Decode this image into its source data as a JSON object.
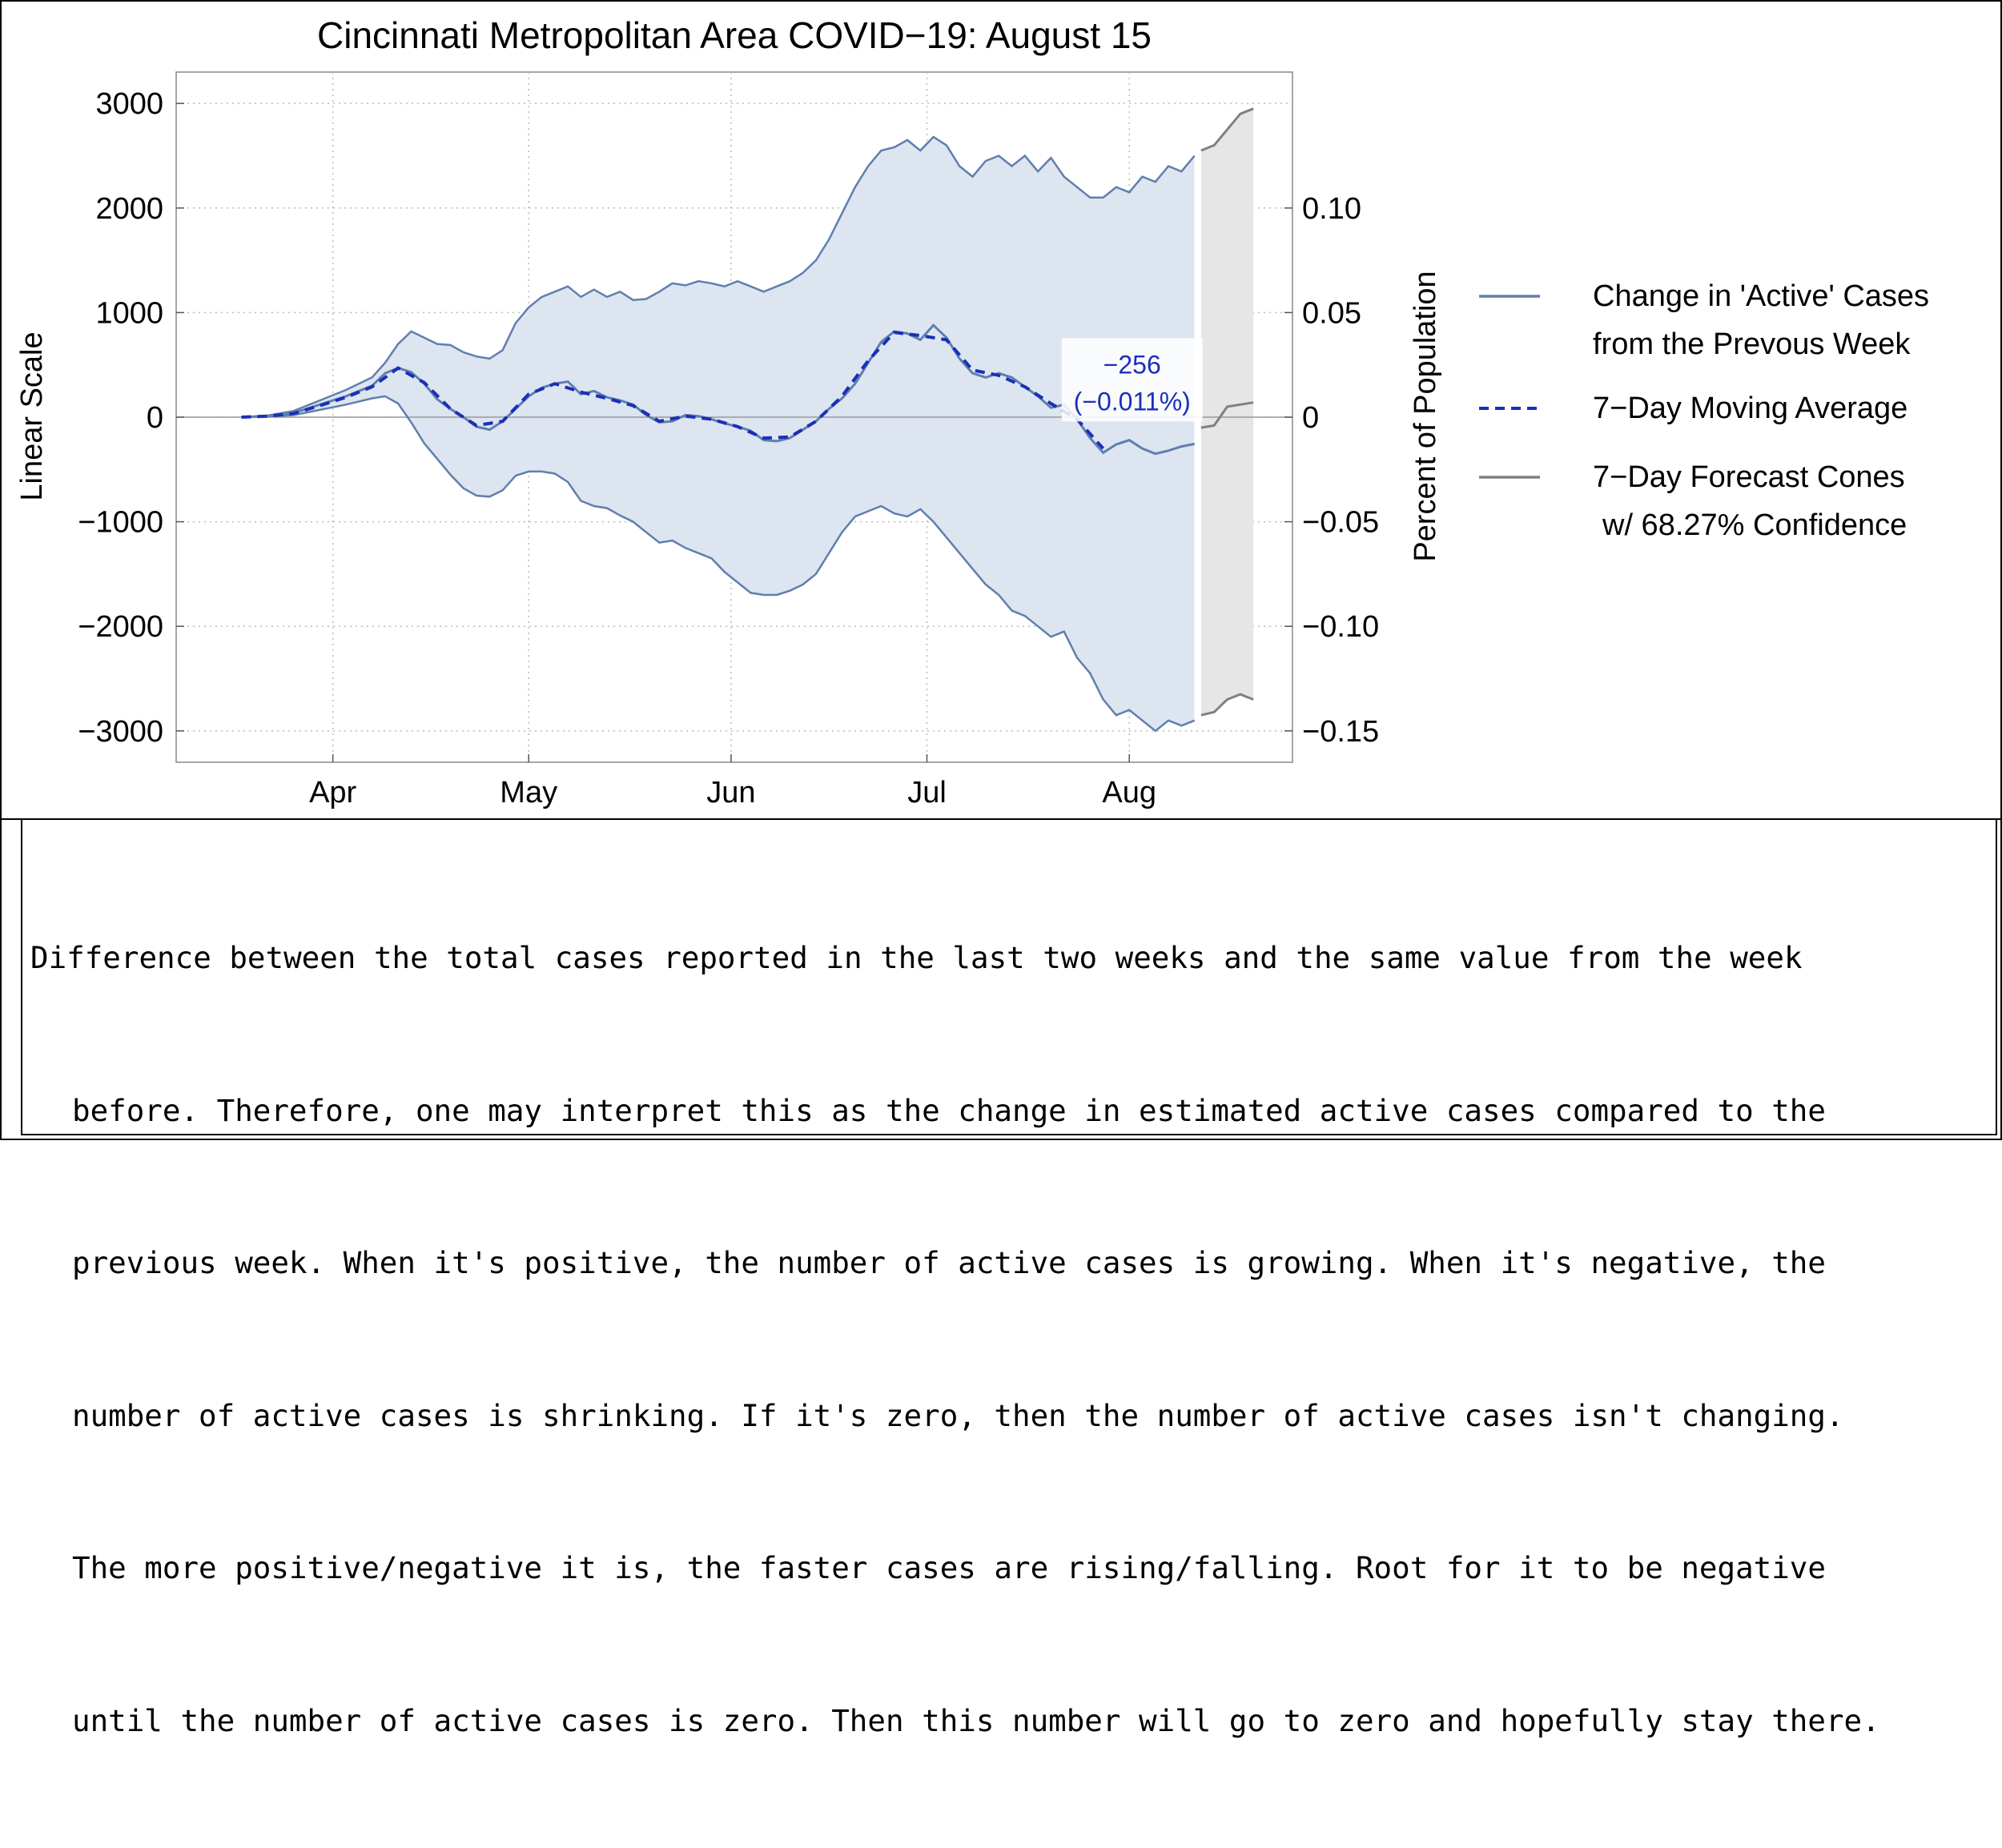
{
  "chart_data": {
    "type": "area",
    "title": "Cincinnati Metropolitan Area COVID−19: August 15",
    "ylabel": "Linear Scale",
    "ylabel_right": "Percent of Population",
    "xlabel": "",
    "ylim": [
      -3300,
      3300
    ],
    "y_ticks": [
      3000,
      2000,
      1000,
      0,
      -1000,
      -2000,
      -3000
    ],
    "y_tick_labels": [
      "3000",
      "2000",
      "1000",
      "0",
      "−1000",
      "−2000",
      "−3000"
    ],
    "y_right_ticks": [
      0.1,
      0.05,
      0,
      -0.05,
      -0.1,
      -0.15
    ],
    "y_right_tick_labels": [
      "0.10",
      "0.05",
      "0",
      "−0.05",
      "−0.10",
      "−0.15"
    ],
    "x_ticks": [
      {
        "day": 14,
        "label": "Apr"
      },
      {
        "day": 44,
        "label": "May"
      },
      {
        "day": 75,
        "label": "Jun"
      },
      {
        "day": 105,
        "label": "Jul"
      },
      {
        "day": 136,
        "label": "Aug"
      }
    ],
    "x_range": [
      -10,
      161
    ],
    "series": [
      {
        "name": "Change in 'Active' Cases from the Prevous Week",
        "color": "#5f7fae",
        "points": [
          [
            0,
            0
          ],
          [
            4,
            10
          ],
          [
            8,
            40
          ],
          [
            12,
            120
          ],
          [
            16,
            200
          ],
          [
            20,
            300
          ],
          [
            22,
            420
          ],
          [
            24,
            470
          ],
          [
            26,
            430
          ],
          [
            28,
            320
          ],
          [
            30,
            170
          ],
          [
            32,
            80
          ],
          [
            34,
            0
          ],
          [
            36,
            -90
          ],
          [
            38,
            -120
          ],
          [
            40,
            -40
          ],
          [
            42,
            80
          ],
          [
            44,
            200
          ],
          [
            46,
            280
          ],
          [
            48,
            320
          ],
          [
            50,
            340
          ],
          [
            52,
            220
          ],
          [
            54,
            250
          ],
          [
            56,
            190
          ],
          [
            58,
            160
          ],
          [
            60,
            120
          ],
          [
            62,
            20
          ],
          [
            64,
            -50
          ],
          [
            66,
            -40
          ],
          [
            68,
            20
          ],
          [
            70,
            10
          ],
          [
            72,
            -20
          ],
          [
            74,
            -60
          ],
          [
            76,
            -90
          ],
          [
            78,
            -130
          ],
          [
            80,
            -220
          ],
          [
            82,
            -230
          ],
          [
            84,
            -200
          ],
          [
            86,
            -120
          ],
          [
            88,
            -40
          ],
          [
            90,
            80
          ],
          [
            92,
            180
          ],
          [
            94,
            320
          ],
          [
            96,
            520
          ],
          [
            98,
            720
          ],
          [
            100,
            820
          ],
          [
            102,
            800
          ],
          [
            104,
            740
          ],
          [
            106,
            880
          ],
          [
            108,
            760
          ],
          [
            110,
            560
          ],
          [
            112,
            420
          ],
          [
            114,
            380
          ],
          [
            116,
            420
          ],
          [
            118,
            380
          ],
          [
            120,
            290
          ],
          [
            122,
            200
          ],
          [
            124,
            90
          ],
          [
            126,
            120
          ],
          [
            128,
            -20
          ],
          [
            130,
            -200
          ],
          [
            132,
            -340
          ],
          [
            134,
            -260
          ],
          [
            136,
            -220
          ],
          [
            138,
            -300
          ],
          [
            140,
            -350
          ],
          [
            142,
            -320
          ],
          [
            144,
            -280
          ],
          [
            146,
            -256
          ]
        ]
      },
      {
        "name": "7−Day Moving Average",
        "color": "#1a2fb8",
        "points": [
          [
            0,
            0
          ],
          [
            4,
            10
          ],
          [
            8,
            35
          ],
          [
            12,
            110
          ],
          [
            16,
            190
          ],
          [
            20,
            290
          ],
          [
            24,
            470
          ],
          [
            28,
            330
          ],
          [
            32,
            80
          ],
          [
            36,
            -80
          ],
          [
            40,
            -40
          ],
          [
            44,
            220
          ],
          [
            48,
            320
          ],
          [
            52,
            240
          ],
          [
            56,
            180
          ],
          [
            60,
            110
          ],
          [
            64,
            -40
          ],
          [
            68,
            10
          ],
          [
            72,
            -20
          ],
          [
            76,
            -90
          ],
          [
            80,
            -200
          ],
          [
            84,
            -190
          ],
          [
            88,
            -40
          ],
          [
            92,
            200
          ],
          [
            96,
            540
          ],
          [
            100,
            810
          ],
          [
            104,
            780
          ],
          [
            108,
            740
          ],
          [
            112,
            450
          ],
          [
            116,
            400
          ],
          [
            120,
            290
          ],
          [
            124,
            130
          ],
          [
            128,
            -20
          ],
          [
            132,
            -300
          ]
        ]
      }
    ],
    "band": {
      "name": "upper/lower band",
      "upper": [
        [
          0,
          0
        ],
        [
          4,
          15
        ],
        [
          8,
          60
        ],
        [
          12,
          160
        ],
        [
          16,
          260
        ],
        [
          20,
          380
        ],
        [
          22,
          520
        ],
        [
          24,
          700
        ],
        [
          26,
          820
        ],
        [
          28,
          760
        ],
        [
          30,
          700
        ],
        [
          32,
          690
        ],
        [
          34,
          620
        ],
        [
          36,
          580
        ],
        [
          38,
          560
        ],
        [
          40,
          640
        ],
        [
          42,
          900
        ],
        [
          44,
          1050
        ],
        [
          46,
          1150
        ],
        [
          48,
          1200
        ],
        [
          50,
          1250
        ],
        [
          52,
          1150
        ],
        [
          54,
          1220
        ],
        [
          56,
          1150
        ],
        [
          58,
          1200
        ],
        [
          60,
          1120
        ],
        [
          62,
          1130
        ],
        [
          64,
          1200
        ],
        [
          66,
          1280
        ],
        [
          68,
          1260
        ],
        [
          70,
          1300
        ],
        [
          72,
          1280
        ],
        [
          74,
          1250
        ],
        [
          76,
          1300
        ],
        [
          78,
          1250
        ],
        [
          80,
          1200
        ],
        [
          82,
          1250
        ],
        [
          84,
          1300
        ],
        [
          86,
          1380
        ],
        [
          88,
          1500
        ],
        [
          90,
          1700
        ],
        [
          92,
          1950
        ],
        [
          94,
          2200
        ],
        [
          96,
          2400
        ],
        [
          98,
          2550
        ],
        [
          100,
          2580
        ],
        [
          102,
          2650
        ],
        [
          104,
          2550
        ],
        [
          106,
          2680
        ],
        [
          108,
          2600
        ],
        [
          110,
          2400
        ],
        [
          112,
          2300
        ],
        [
          114,
          2450
        ],
        [
          116,
          2500
        ],
        [
          118,
          2400
        ],
        [
          120,
          2500
        ],
        [
          122,
          2350
        ],
        [
          124,
          2480
        ],
        [
          126,
          2300
        ],
        [
          128,
          2200
        ],
        [
          130,
          2100
        ],
        [
          132,
          2100
        ],
        [
          134,
          2200
        ],
        [
          136,
          2150
        ],
        [
          138,
          2300
        ],
        [
          140,
          2250
        ],
        [
          142,
          2400
        ],
        [
          144,
          2350
        ],
        [
          146,
          2500
        ]
      ],
      "lower": [
        [
          0,
          0
        ],
        [
          4,
          5
        ],
        [
          8,
          20
        ],
        [
          12,
          70
        ],
        [
          16,
          120
        ],
        [
          20,
          180
        ],
        [
          22,
          200
        ],
        [
          24,
          130
        ],
        [
          26,
          -50
        ],
        [
          28,
          -250
        ],
        [
          30,
          -400
        ],
        [
          32,
          -550
        ],
        [
          34,
          -680
        ],
        [
          36,
          -750
        ],
        [
          38,
          -760
        ],
        [
          40,
          -700
        ],
        [
          42,
          -560
        ],
        [
          44,
          -520
        ],
        [
          46,
          -520
        ],
        [
          48,
          -540
        ],
        [
          50,
          -620
        ],
        [
          52,
          -800
        ],
        [
          54,
          -850
        ],
        [
          56,
          -870
        ],
        [
          58,
          -940
        ],
        [
          60,
          -1000
        ],
        [
          62,
          -1100
        ],
        [
          64,
          -1200
        ],
        [
          66,
          -1180
        ],
        [
          68,
          -1250
        ],
        [
          70,
          -1300
        ],
        [
          72,
          -1350
        ],
        [
          74,
          -1480
        ],
        [
          76,
          -1580
        ],
        [
          78,
          -1680
        ],
        [
          80,
          -1700
        ],
        [
          82,
          -1700
        ],
        [
          84,
          -1660
        ],
        [
          86,
          -1600
        ],
        [
          88,
          -1500
        ],
        [
          90,
          -1300
        ],
        [
          92,
          -1100
        ],
        [
          94,
          -950
        ],
        [
          96,
          -900
        ],
        [
          98,
          -850
        ],
        [
          100,
          -920
        ],
        [
          102,
          -950
        ],
        [
          104,
          -880
        ],
        [
          106,
          -1000
        ],
        [
          108,
          -1150
        ],
        [
          110,
          -1300
        ],
        [
          112,
          -1450
        ],
        [
          114,
          -1600
        ],
        [
          116,
          -1700
        ],
        [
          118,
          -1850
        ],
        [
          120,
          -1900
        ],
        [
          122,
          -2000
        ],
        [
          124,
          -2100
        ],
        [
          126,
          -2050
        ],
        [
          128,
          -2300
        ],
        [
          130,
          -2450
        ],
        [
          132,
          -2700
        ],
        [
          134,
          -2850
        ],
        [
          136,
          -2800
        ],
        [
          138,
          -2900
        ],
        [
          140,
          -3000
        ],
        [
          142,
          -2900
        ],
        [
          144,
          -2950
        ],
        [
          146,
          -2900
        ]
      ]
    },
    "forecast_cones": {
      "name": "7−Day Forecast Cones w/ 68.27% Confidence",
      "color": "#808080",
      "x_start": 147,
      "x_end": 155,
      "upper": [
        [
          147,
          2550
        ],
        [
          149,
          2600
        ],
        [
          151,
          2750
        ],
        [
          153,
          2900
        ],
        [
          155,
          2950
        ]
      ],
      "mid": [
        [
          147,
          -100
        ],
        [
          149,
          -80
        ],
        [
          151,
          100
        ],
        [
          153,
          120
        ],
        [
          155,
          140
        ]
      ],
      "lower": [
        [
          147,
          -2850
        ],
        [
          149,
          -2820
        ],
        [
          151,
          -2700
        ],
        [
          153,
          -2650
        ],
        [
          155,
          -2700
        ]
      ]
    },
    "annotation": {
      "value": "−256",
      "percent": "(−0.011%)"
    },
    "legend": [
      {
        "label_line1": "Change in 'Active' Cases",
        "label_line2": "from the Prevous Week",
        "style": "solid",
        "color": "#5f7fae"
      },
      {
        "label_line1": "7−Day Moving Average",
        "label_line2": "",
        "style": "dashed",
        "color": "#1a2fb8"
      },
      {
        "label_line1": "7−Day Forecast Cones",
        "label_line2": "w/ 68.27% Confidence",
        "style": "solid",
        "color": "#808080"
      }
    ],
    "legend_position": "right"
  },
  "caption": {
    "lines": [
      "Difference between the total cases reported in the last two weeks and the same value from the week",
      "before. Therefore, one may interpret this as the change in estimated active cases compared to the",
      "previous week. When it's positive, the number of active cases is growing. When it's negative, the",
      "number of active cases is shrinking. If it's zero, then the number of active cases isn't changing.",
      "The more positive/negative it is, the faster cases are rising/falling. Root for it to be negative",
      "until the number of active cases is zero. Then this number will go to zero and hopefully stay there."
    ]
  }
}
